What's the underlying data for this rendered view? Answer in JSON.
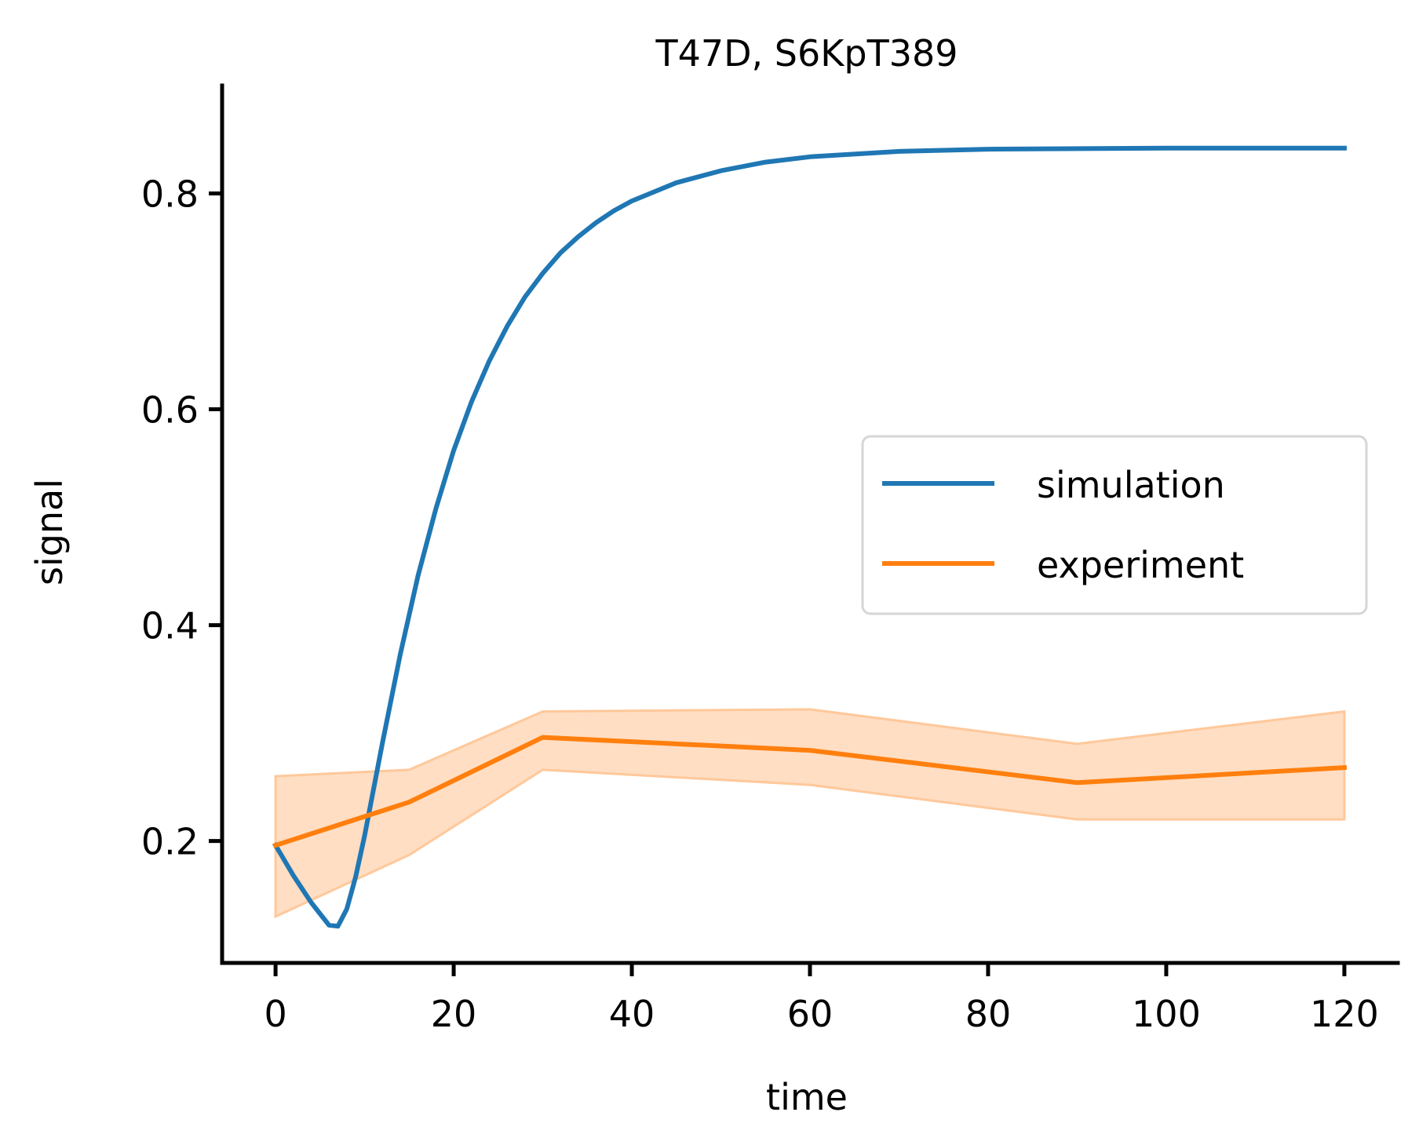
{
  "chart_data": {
    "type": "line",
    "title": "T47D, S6KpT389",
    "xlabel": "time",
    "ylabel": "signal",
    "xlim": [
      -6,
      126
    ],
    "ylim": [
      0.087,
      0.9
    ],
    "xticks": [
      0,
      20,
      40,
      60,
      80,
      100,
      120
    ],
    "xtick_labels": [
      "0",
      "20",
      "40",
      "60",
      "80",
      "100",
      "120"
    ],
    "yticks": [
      0.2,
      0.4,
      0.6,
      0.8
    ],
    "ytick_labels": [
      "0.2",
      "0.4",
      "0.6",
      "0.8"
    ],
    "grid": false,
    "legend_position": "center-right",
    "series": [
      {
        "name": "simulation",
        "color": "#1f77b4",
        "points": [
          {
            "x": 0,
            "y": 0.196
          },
          {
            "x": 2,
            "y": 0.168
          },
          {
            "x": 4,
            "y": 0.143
          },
          {
            "x": 6,
            "y": 0.122
          },
          {
            "x": 7,
            "y": 0.121
          },
          {
            "x": 8,
            "y": 0.137
          },
          {
            "x": 9,
            "y": 0.167
          },
          {
            "x": 10,
            "y": 0.205
          },
          {
            "x": 12,
            "y": 0.291
          },
          {
            "x": 14,
            "y": 0.373
          },
          {
            "x": 16,
            "y": 0.446
          },
          {
            "x": 18,
            "y": 0.508
          },
          {
            "x": 20,
            "y": 0.562
          },
          {
            "x": 22,
            "y": 0.607
          },
          {
            "x": 24,
            "y": 0.645
          },
          {
            "x": 26,
            "y": 0.677
          },
          {
            "x": 28,
            "y": 0.704
          },
          {
            "x": 30,
            "y": 0.726
          },
          {
            "x": 32,
            "y": 0.745
          },
          {
            "x": 34,
            "y": 0.76
          },
          {
            "x": 36,
            "y": 0.773
          },
          {
            "x": 38,
            "y": 0.784
          },
          {
            "x": 40,
            "y": 0.793
          },
          {
            "x": 45,
            "y": 0.81
          },
          {
            "x": 50,
            "y": 0.821
          },
          {
            "x": 55,
            "y": 0.829
          },
          {
            "x": 60,
            "y": 0.834
          },
          {
            "x": 70,
            "y": 0.839
          },
          {
            "x": 80,
            "y": 0.841
          },
          {
            "x": 100,
            "y": 0.842
          },
          {
            "x": 120,
            "y": 0.842
          }
        ]
      },
      {
        "name": "experiment",
        "color": "#ff7f0e",
        "band_color": "#ffdcc0",
        "band_edge_color": "#ffc89a",
        "points": [
          {
            "x": 0,
            "y": 0.196,
            "low": 0.13,
            "high": 0.26
          },
          {
            "x": 15,
            "y": 0.236,
            "low": 0.187,
            "high": 0.266
          },
          {
            "x": 30,
            "y": 0.296,
            "low": 0.266,
            "high": 0.32
          },
          {
            "x": 60,
            "y": 0.284,
            "low": 0.252,
            "high": 0.322
          },
          {
            "x": 90,
            "y": 0.254,
            "low": 0.22,
            "high": 0.29
          },
          {
            "x": 120,
            "y": 0.268,
            "low": 0.22,
            "high": 0.32
          }
        ]
      }
    ]
  }
}
